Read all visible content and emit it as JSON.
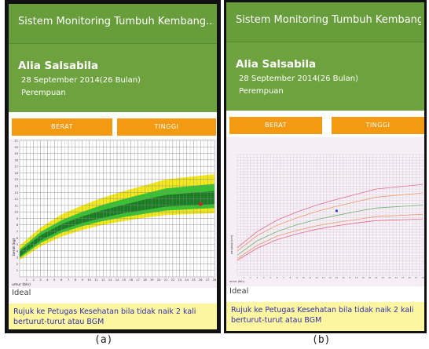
{
  "panels": [
    {
      "label": "(a)",
      "app_title": "Sistem Monitoring Tumbuh Kembang...",
      "child_name": "Alia Salsabila",
      "dob": "28 September 2014(26 Bulan)",
      "gender": "Perempuan",
      "tabs": [
        "BERAT",
        "TINGGI"
      ],
      "status": "Ideal",
      "note": "Rujuk ke Petugas Kesehatan bila tidak naik 2 kali berturut-turut atau BGM",
      "chart": {
        "ylabel": "berat (kg)",
        "xlabel": "umur (bln)"
      }
    },
    {
      "label": "(b)",
      "app_title": "Sistem Monitoring Tumbuh Kembang...",
      "child_name": "Alia Salsabila",
      "dob": "28 September 2014(26 Bulan)",
      "gender": "Perempuan",
      "tabs": [
        "BERAT",
        "TINGGI"
      ],
      "status": "Ideal",
      "note": "Rujuk ke Petugas Kesehatan bila tidak naik 2 kali berturut-turut atau BGM",
      "chart": {
        "ylabel": "panjang (cm)",
        "xlabel": "umur (bln)"
      }
    }
  ],
  "chart_data": [
    {
      "type": "area",
      "xlabel": "umur (bln)",
      "ylabel": "berat (kg)",
      "xlim": [
        0,
        28
      ],
      "ylim": [
        0,
        21
      ],
      "x_ticks": [
        1,
        2,
        3,
        4,
        5,
        6,
        7,
        8,
        9,
        10,
        11,
        12,
        13,
        14,
        15,
        16,
        17,
        18,
        19,
        20,
        21,
        22,
        23,
        24,
        25,
        26,
        27,
        28
      ],
      "y_ticks": [
        1,
        2,
        3,
        4,
        5,
        6,
        7,
        8,
        9,
        10,
        11,
        12,
        13,
        14,
        15,
        16,
        17,
        18,
        19,
        20,
        21
      ],
      "grid": true,
      "bands": [
        {
          "name": "yellow",
          "color": "#f4ea1a",
          "lower": [
            2.6,
            4.7,
            6.2,
            7.2,
            8.0,
            8.6,
            9.1,
            9.5,
            9.8
          ],
          "upper": [
            4.8,
            7.6,
            9.6,
            11.0,
            12.2,
            13.2,
            14.1,
            15.0,
            15.8
          ]
        },
        {
          "name": "light-green",
          "color": "#35c42e",
          "lower": [
            2.9,
            5.2,
            6.8,
            7.8,
            8.6,
            9.2,
            9.7,
            10.2,
            10.6
          ],
          "upper": [
            4.2,
            6.9,
            8.7,
            10.0,
            11.1,
            12.0,
            12.8,
            13.6,
            14.3
          ]
        },
        {
          "name": "dark-green",
          "color": "#197e22",
          "lower": [
            3.1,
            5.6,
            7.2,
            8.3,
            9.1,
            9.8,
            10.3,
            10.8,
            11.2
          ],
          "upper": [
            3.9,
            6.4,
            8.1,
            9.3,
            10.3,
            11.1,
            11.9,
            12.6,
            13.2
          ]
        }
      ],
      "band_x": [
        0,
        3,
        6,
        9,
        12,
        15,
        18,
        21,
        28
      ],
      "points": [
        {
          "x": 26,
          "y": 11.2,
          "color": "#d8201f"
        }
      ]
    },
    {
      "type": "line",
      "xlabel": "umur (bln)",
      "ylabel": "panjang (cm)",
      "grid": true,
      "xlim": [
        0,
        28
      ],
      "ylim": [
        0,
        21
      ],
      "x": [
        0,
        3,
        6,
        9,
        12,
        15,
        18,
        21,
        28
      ],
      "series": [
        {
          "color": "#e36a8a",
          "values": [
            2.6,
            4.7,
            6.2,
            7.2,
            8.0,
            8.6,
            9.1,
            9.5,
            9.8
          ]
        },
        {
          "color": "#e89a6a",
          "values": [
            2.9,
            5.2,
            6.8,
            7.8,
            8.6,
            9.2,
            9.7,
            10.2,
            10.6
          ]
        },
        {
          "color": "#6fb36f",
          "values": [
            3.5,
            6.0,
            7.6,
            8.8,
            9.7,
            10.4,
            11.1,
            11.7,
            12.2
          ]
        },
        {
          "color": "#e89a6a",
          "values": [
            4.2,
            6.9,
            8.7,
            10.0,
            11.1,
            12.0,
            12.8,
            13.6,
            14.3
          ]
        },
        {
          "color": "#e36a8a",
          "values": [
            4.8,
            7.6,
            9.6,
            11.0,
            12.2,
            13.2,
            14.1,
            15.0,
            15.8
          ]
        }
      ],
      "points": [
        {
          "x": 15,
          "y": 11.2,
          "color": "#1a36d8"
        }
      ]
    }
  ]
}
